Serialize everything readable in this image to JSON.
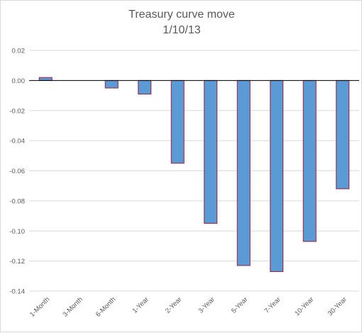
{
  "chart_data": {
    "type": "bar",
    "title_lines": [
      "Treasury curve move",
      "1/10/13"
    ],
    "categories": [
      "1-Month",
      "3-Month",
      "6-Month",
      "1-Year",
      "2-Year",
      "3-Year",
      "5-Year",
      "7-Year",
      "10-Year",
      "30-Year"
    ],
    "values": [
      0.002,
      0.0,
      -0.005,
      -0.009,
      -0.055,
      -0.095,
      -0.123,
      -0.127,
      -0.107,
      -0.072
    ],
    "ylim": [
      -0.14,
      0.02
    ],
    "yticks": [
      "0.02",
      "0.00",
      "-0.02",
      "-0.04",
      "-0.06",
      "-0.08",
      "-0.10",
      "-0.12",
      "-0.14"
    ],
    "xlabel": "",
    "ylabel": "",
    "grid": true,
    "legend": "none",
    "colors": {
      "bar_fill": "#5b9bd5",
      "bar_edge": "#9e1c3c",
      "grid": "#d9d9d9",
      "zero_line": "#000000"
    }
  }
}
